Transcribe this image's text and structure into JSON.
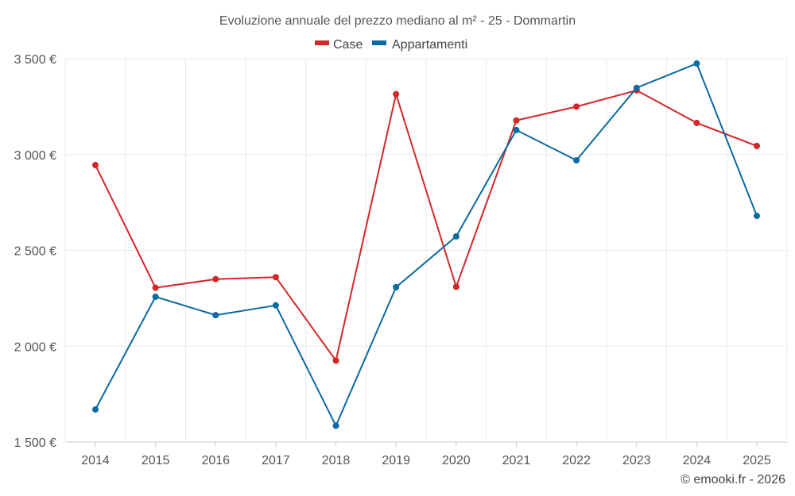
{
  "chart_data": {
    "type": "line",
    "title": "Evoluzione annuale del prezzo mediano al m² - 25 - Dommartin",
    "xlabel": "",
    "ylabel": "",
    "categories": [
      "2014",
      "2015",
      "2016",
      "2017",
      "2018",
      "2019",
      "2020",
      "2021",
      "2022",
      "2023",
      "2024",
      "2025"
    ],
    "ylim": [
      1500,
      3500
    ],
    "yticks": [
      1500,
      2000,
      2500,
      3000,
      3500
    ],
    "ytick_labels": [
      "1 500 €",
      "2 000 €",
      "2 500 €",
      "3 000 €",
      "3 500 €"
    ],
    "grid": true,
    "legend_position": "top-center",
    "series": [
      {
        "name": "Case",
        "color": "#d62728",
        "values": [
          2945,
          2305,
          2350,
          2360,
          1925,
          3315,
          2310,
          3178,
          3250,
          3335,
          3165,
          3045
        ]
      },
      {
        "name": "Appartamenti",
        "color": "#0a6aa1",
        "values": [
          1670,
          2258,
          2162,
          2213,
          1585,
          2308,
          2573,
          3128,
          2970,
          3348,
          3475,
          2680
        ]
      }
    ]
  },
  "credit": "© emooki.fr - 2026"
}
